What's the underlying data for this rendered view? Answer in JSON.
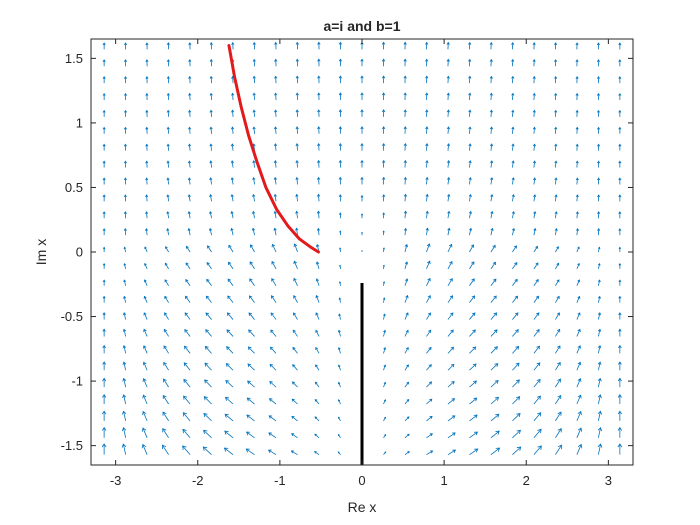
{
  "chart_data": {
    "type": "quiver",
    "title": "a=i and b=1",
    "xlabel": "Re x",
    "ylabel": "Im x",
    "xlim": [
      -3.3,
      3.3
    ],
    "ylim": [
      -1.65,
      1.65
    ],
    "xticks": [
      -3,
      -2,
      -1,
      0,
      1,
      2,
      3
    ],
    "xtick_labels": [
      "-3",
      "-2",
      "-1",
      "0",
      "1",
      "2",
      "3"
    ],
    "yticks": [
      -1.5,
      -1,
      -0.5,
      0,
      0.5,
      1,
      1.5
    ],
    "ytick_labels": [
      "-1.5",
      "-1",
      "-0.5",
      "0",
      "0.5",
      "1",
      "1.5"
    ],
    "grid": false,
    "vector_field": {
      "x_range": [
        -3.14,
        3.14
      ],
      "y_range": [
        -1.57,
        1.57
      ],
      "nx": 25,
      "ny": 25,
      "color": "#0072bd"
    },
    "trajectory": {
      "color": "#e31a1c",
      "x": [
        -1.62,
        -1.55,
        -1.47,
        -1.38,
        -1.28,
        -1.17,
        -1.04,
        -0.9,
        -0.76,
        -0.63,
        -0.53
      ],
      "y": [
        1.6,
        1.35,
        1.12,
        0.9,
        0.7,
        0.5,
        0.33,
        0.2,
        0.1,
        0.04,
        0.0
      ]
    },
    "branch_cut": {
      "color": "#000000",
      "x": [
        0,
        0
      ],
      "y": [
        -0.24,
        -1.65
      ]
    }
  }
}
